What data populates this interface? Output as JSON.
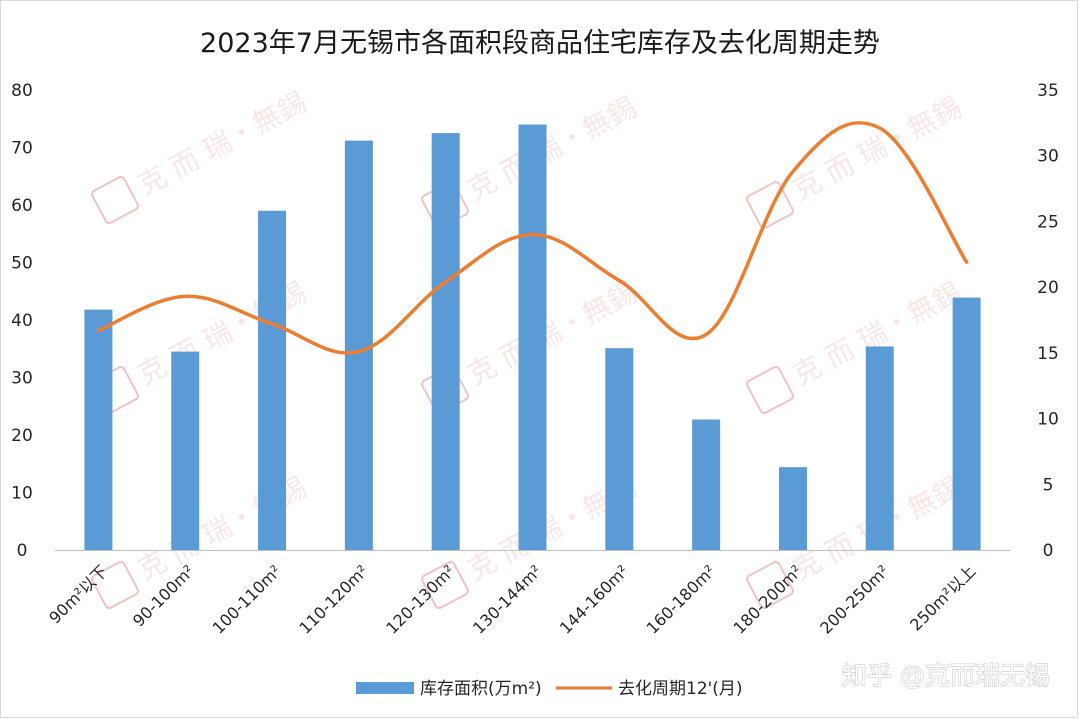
{
  "chart_data": {
    "type": "bar",
    "title": "2023年7月无锡市各面积段商品住宅库存及去化周期走势",
    "categories": [
      "90m²以下",
      "90-100m²",
      "100-110m²",
      "110-120m²",
      "120-130m²",
      "130-144m²",
      "144-160m²",
      "160-180m²",
      "180-200m²",
      "200-250m²",
      "250m²以上"
    ],
    "series": [
      {
        "name": "库存面积(万m²)",
        "type": "bar",
        "axis": "left",
        "color": "#5b9bd5",
        "values": [
          41.8,
          34.5,
          59.0,
          71.2,
          72.5,
          74.0,
          35.1,
          22.7,
          14.4,
          35.4,
          43.9
        ]
      },
      {
        "name": "去化周期12'(月)",
        "type": "line",
        "smooth": true,
        "axis": "right",
        "color": "#ed7d31",
        "values": [
          16.7,
          19.3,
          17.2,
          15.1,
          20.4,
          24.0,
          20.5,
          16.4,
          28.8,
          32.1,
          21.9
        ]
      }
    ],
    "y_left": {
      "min": 0,
      "max": 80,
      "step": 10
    },
    "y_right": {
      "min": 0,
      "max": 35,
      "step": 5
    },
    "grid": false,
    "legend": "bottom"
  },
  "watermark": {
    "text": "克 而 瑞・無錫",
    "seal_color": "#e07a7a"
  },
  "credit": "知乎 @克而瑞无锡"
}
